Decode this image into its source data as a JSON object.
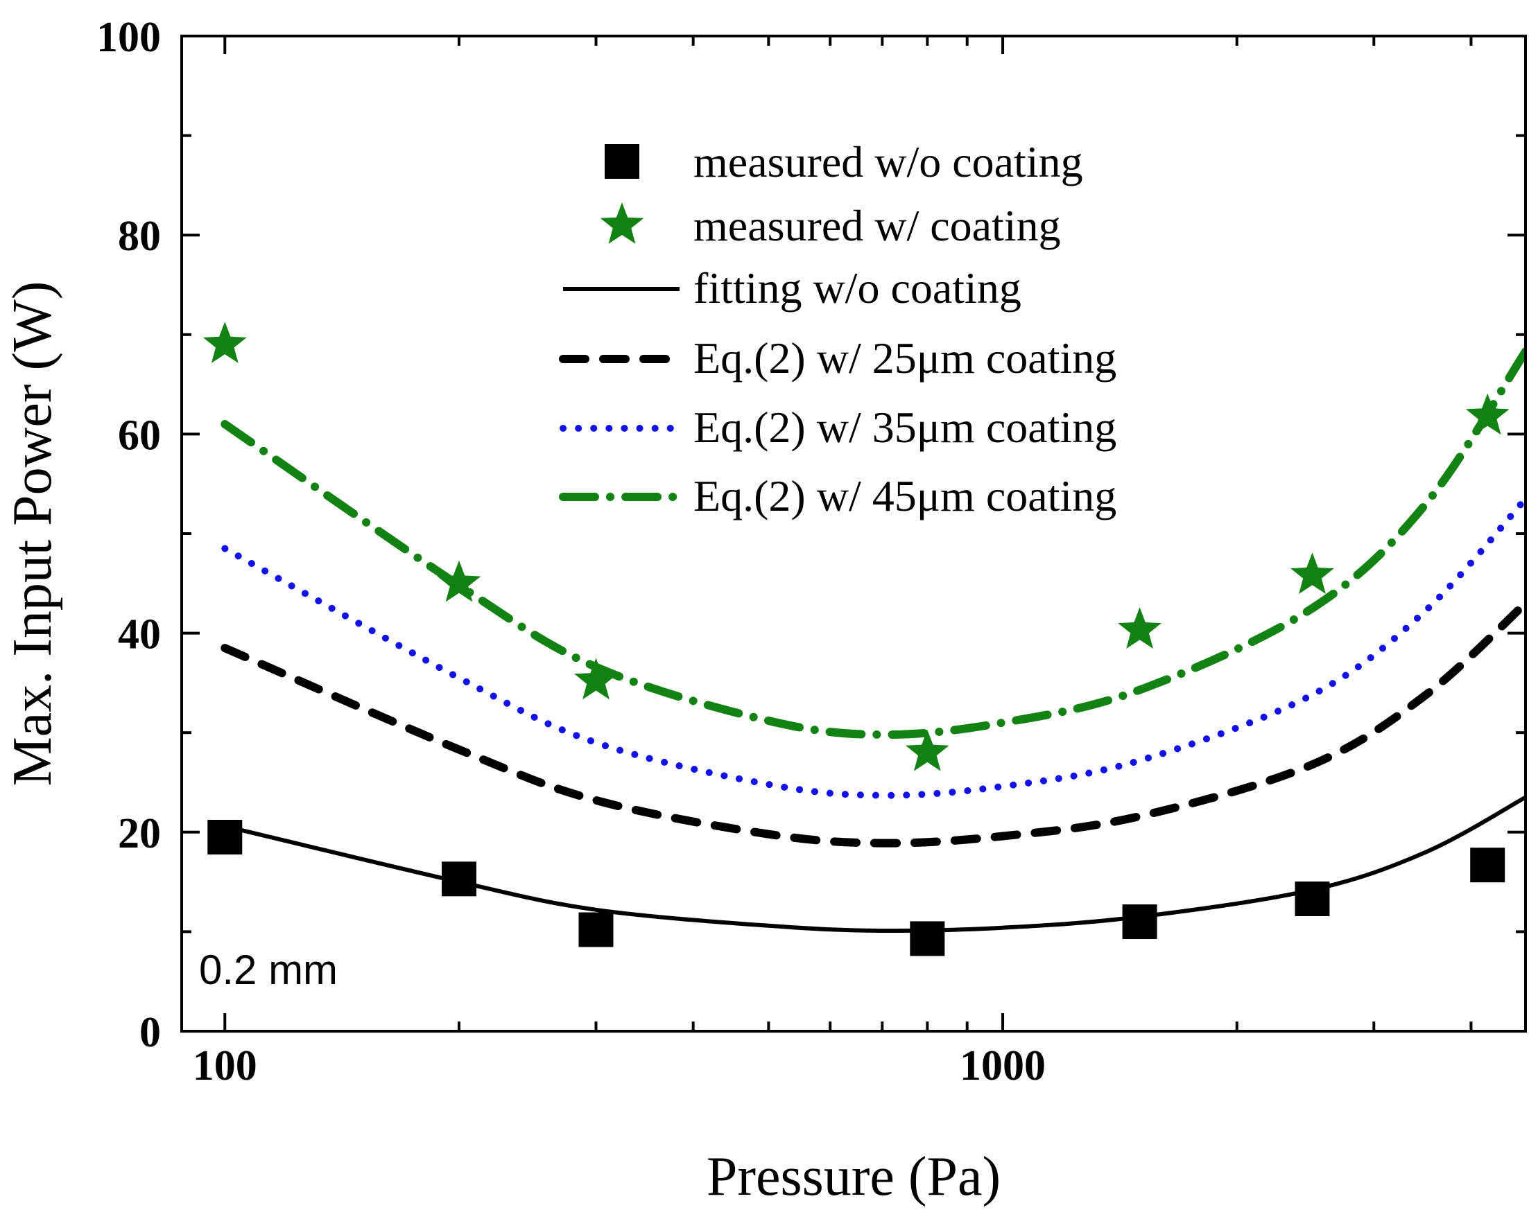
{
  "chart_data": {
    "type": "scatter",
    "title": "",
    "xlabel": "Pressure (Pa)",
    "ylabel": "Max. Input Power (W)",
    "xscale": "log",
    "xlim": [
      88,
      4700
    ],
    "ylim": [
      0,
      100
    ],
    "grid": false,
    "legend_position": "top-center",
    "annotation": "0.2 mm",
    "colors": {
      "black": "#000000",
      "green": "#128212",
      "blue": "#1212e8"
    },
    "x_ticks": [
      {
        "value": 100,
        "label": "100"
      },
      {
        "value": 1000,
        "label": "1000"
      }
    ],
    "y_ticks": [
      {
        "value": 0,
        "label": "0"
      },
      {
        "value": 20,
        "label": "20"
      },
      {
        "value": 40,
        "label": "40"
      },
      {
        "value": 60,
        "label": "60"
      },
      {
        "value": 80,
        "label": "80"
      },
      {
        "value": 100,
        "label": "100"
      }
    ],
    "x_minor_ticks": [
      200,
      300,
      400,
      500,
      600,
      700,
      800,
      900,
      2000,
      3000,
      4000
    ],
    "y_minor_ticks": [
      10,
      30,
      50,
      70,
      90
    ],
    "series": [
      {
        "name": "measured w/o coating",
        "kind": "marker",
        "marker": "square",
        "color": "#000000",
        "x": [
          100,
          200,
          300,
          800,
          1500,
          2500,
          4200
        ],
        "y": [
          19.5,
          15.3,
          10.2,
          9.3,
          11.0,
          13.3,
          16.7
        ]
      },
      {
        "name": "measured w/ coating",
        "kind": "marker",
        "marker": "star",
        "color": "#128212",
        "x": [
          100,
          200,
          300,
          800,
          1500,
          2500,
          4200
        ],
        "y": [
          69.0,
          45.0,
          35.2,
          28.0,
          40.3,
          45.8,
          61.8
        ]
      },
      {
        "name": "fitting w/o coating",
        "kind": "line",
        "style": "solid",
        "color": "#000000",
        "x": [
          100,
          200,
          300,
          500,
          700,
          1000,
          1500,
          2500,
          3500,
          4700
        ],
        "y": [
          20.6,
          15.0,
          12.2,
          10.6,
          10.1,
          10.4,
          11.5,
          14.2,
          18.0,
          23.5
        ]
      },
      {
        "name": "Eq.(2) w/ 25μm coating",
        "kind": "line",
        "style": "dash",
        "color": "#000000",
        "x": [
          100,
          200,
          300,
          500,
          700,
          1000,
          1500,
          2500,
          3500,
          4700
        ],
        "y": [
          38.5,
          28.3,
          23.2,
          19.8,
          18.9,
          19.6,
          21.6,
          26.8,
          33.8,
          43.0
        ]
      },
      {
        "name": "Eq.(2) w/ 35μm coating",
        "kind": "line",
        "style": "dot",
        "color": "#1212e8",
        "x": [
          100,
          200,
          300,
          500,
          700,
          1000,
          1500,
          2500,
          3500,
          4700
        ],
        "y": [
          48.5,
          35.5,
          29.0,
          24.8,
          23.7,
          24.6,
          27.2,
          33.8,
          42.3,
          53.5
        ]
      },
      {
        "name": "Eq.(2) w/ 45μm coating",
        "kind": "line",
        "style": "dashdot",
        "color": "#128212",
        "x": [
          100,
          200,
          300,
          500,
          700,
          1000,
          1500,
          2500,
          3500,
          4700
        ],
        "y": [
          61.0,
          44.8,
          36.6,
          31.2,
          29.8,
          31.0,
          34.3,
          42.5,
          53.0,
          68.3
        ]
      }
    ]
  }
}
